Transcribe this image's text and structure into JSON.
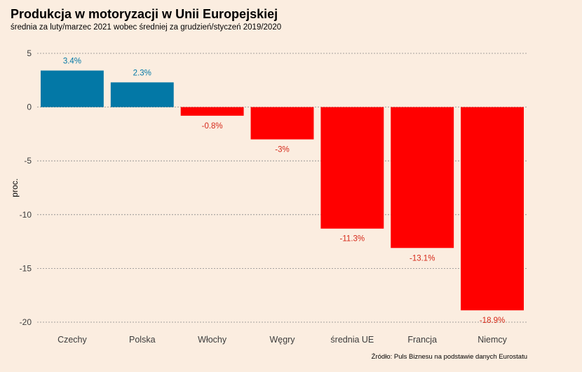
{
  "title": "Produkcja w motoryzacji w Unii Europejskiej",
  "subtitle": "średnia za luty/marzec 2021 wobec średniej za grudzień/styczeń 2019/2020",
  "source": "Źródło: Puls Biznesu na podstawie danych Eurostatu",
  "colors": {
    "background": "#FBEDE0",
    "positive": "#0378A6",
    "negative": "#FF0000",
    "negative_label": "#D62A1A",
    "grid": "#888888",
    "axis_text": "#3C3C3C"
  },
  "chart_data": {
    "type": "bar",
    "title": "Produkcja w motoryzacji w Unii Europejskiej",
    "subtitle": "średnia za luty/marzec 2021 wobec średniej za grudzień/styczeń 2019/2020",
    "xlabel": "",
    "ylabel": "proc.",
    "categories": [
      "Czechy",
      "Polska",
      "Włochy",
      "Węgry",
      "średnia UE",
      "Francja",
      "Niemcy"
    ],
    "values": [
      3.4,
      2.3,
      -0.8,
      -3,
      -11.3,
      -13.1,
      -18.9
    ],
    "data_labels": [
      "3.4%",
      "2.3%",
      "-0.8%",
      "-3%",
      "-11.3%",
      "-13.1%",
      "-18.9%"
    ],
    "yticks": [
      5,
      0,
      -5,
      -10,
      -15,
      -20
    ],
    "ylim": [
      -20,
      5
    ],
    "grid": true,
    "legend": "none"
  }
}
